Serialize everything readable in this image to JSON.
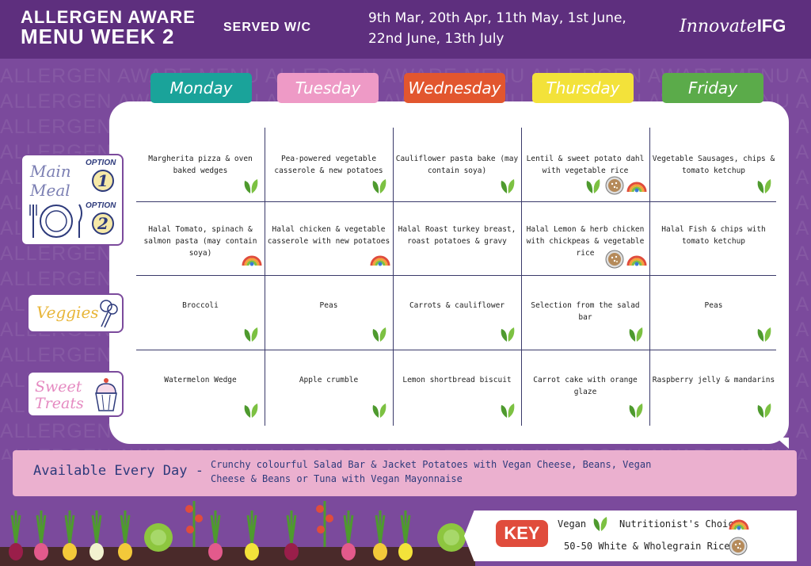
{
  "header": {
    "title_line1": "ALLERGEN AWARE",
    "title_line2": "MENU WEEK 2",
    "served": "SERVED W/C",
    "dates": "9th Mar, 20th Apr, 11th May, 1st June, 22nd June, 13th July",
    "brand_script": "Innovate",
    "brand_bold": "IFG"
  },
  "watermark": "ALLERGEN AWARE MENU",
  "days": [
    {
      "label": "Monday",
      "color": "#1aa39a"
    },
    {
      "label": "Tuesday",
      "color": "#ee9ac6"
    },
    {
      "label": "Wednesday",
      "color": "#e2562e"
    },
    {
      "label": "Thursday",
      "color": "#f3e23a"
    },
    {
      "label": "Friday",
      "color": "#5bab4a"
    }
  ],
  "row_labels": {
    "main_meal": "Main Meal",
    "option": "OPTION",
    "option1": "1",
    "option2": "2",
    "veggies": "Veggies",
    "sweet_treats": "Sweet Treats"
  },
  "menu": {
    "option1": [
      {
        "text": "Margherita pizza & oven baked wedges",
        "icons": [
          "vegan"
        ]
      },
      {
        "text": "Pea-powered vegetable casserole & new potatoes",
        "icons": [
          "vegan"
        ]
      },
      {
        "text": "Cauliflower pasta bake (may contain soya)",
        "icons": [
          "vegan"
        ]
      },
      {
        "text": "Lentil & sweet potato dahl with vegetable rice",
        "icons": [
          "vegan",
          "rice",
          "rainbow"
        ]
      },
      {
        "text": "Vegetable Sausages, chips & tomato ketchup",
        "icons": [
          "vegan"
        ]
      }
    ],
    "option2": [
      {
        "text": "Halal Tomato, spinach & salmon pasta (may contain soya)",
        "icons": [
          "rainbow"
        ]
      },
      {
        "text": "Halal chicken & vegetable casserole with new potatoes",
        "icons": [
          "rainbow"
        ]
      },
      {
        "text": "Halal Roast turkey breast, roast potatoes & gravy",
        "icons": []
      },
      {
        "text": "Halal Lemon & herb chicken with chickpeas & vegetable rice",
        "icons": [
          "rice",
          "rainbow"
        ]
      },
      {
        "text": "Halal Fish & chips with tomato ketchup",
        "icons": []
      }
    ],
    "veggies": [
      {
        "text": "Broccoli",
        "icons": [
          "vegan"
        ]
      },
      {
        "text": "Peas",
        "icons": [
          "vegan"
        ]
      },
      {
        "text": "Carrots & cauliflower",
        "icons": [
          "vegan"
        ]
      },
      {
        "text": "Selection from the salad bar",
        "icons": [
          "vegan"
        ]
      },
      {
        "text": "Peas",
        "icons": [
          "vegan"
        ]
      }
    ],
    "sweet_treats": [
      {
        "text": "Watermelon Wedge",
        "icons": [
          "vegan"
        ]
      },
      {
        "text": "Apple crumble",
        "icons": [
          "vegan"
        ]
      },
      {
        "text": "Lemon shortbread biscuit",
        "icons": [
          "vegan"
        ]
      },
      {
        "text": "Carrot cake with orange glaze",
        "icons": [
          "vegan"
        ]
      },
      {
        "text": "Raspberry jelly & mandarins",
        "icons": [
          "vegan"
        ]
      }
    ]
  },
  "available": {
    "title": "Available Every Day -",
    "text": "Crunchy colourful Salad Bar & Jacket Potatoes with Vegan Cheese, Beans, Vegan Cheese & Beans or Tuna with Vegan Mayonnaise"
  },
  "key": {
    "badge": "KEY",
    "vegan": "Vegan",
    "nutritionist": "Nutritionist's Choice",
    "rice": "50-50 White & Wholegrain Rice"
  },
  "colors": {
    "purple": "#7b4a9c",
    "navy": "#2d3a7b",
    "pink_band": "#ebb0cf",
    "leaf_green": "#4e9a2e"
  }
}
